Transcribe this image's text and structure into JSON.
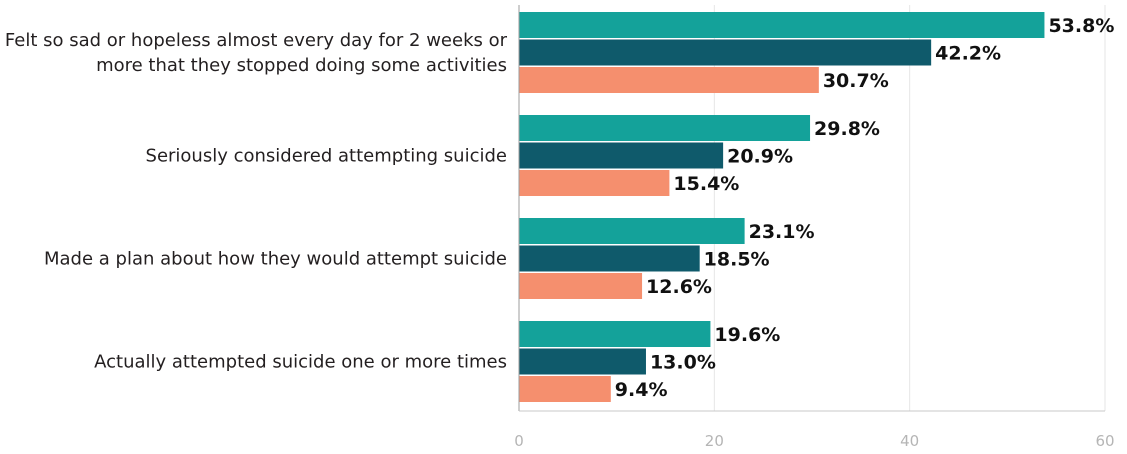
{
  "chart_data": {
    "type": "bar",
    "orientation": "horizontal",
    "categories": [
      [
        "Felt so sad or hopeless almost every day for 2 weeks or",
        "more that they stopped doing some activities"
      ],
      [
        "Seriously considered attempting suicide"
      ],
      [
        "Made a plan about how they would attempt suicide"
      ],
      [
        "Actually attempted suicide one or more times"
      ]
    ],
    "series": [
      {
        "color": "#14a29a",
        "values": [
          53.8,
          29.8,
          23.1,
          19.6
        ],
        "labels": [
          "53.8%",
          "29.8%",
          "23.1%",
          "19.6%"
        ]
      },
      {
        "color": "#0f5a6b",
        "values": [
          42.2,
          20.9,
          18.5,
          13.0
        ],
        "labels": [
          "42.2%",
          "20.9%",
          "18.5%",
          "13.0%"
        ]
      },
      {
        "color": "#f58f6e",
        "values": [
          30.7,
          15.4,
          12.6,
          9.4
        ],
        "labels": [
          "30.7%",
          "15.4%",
          "12.6%",
          "9.4%"
        ]
      }
    ],
    "xlim": [
      0,
      60
    ],
    "xticks": [
      "0",
      "20",
      "40",
      "60"
    ],
    "grid": true,
    "title": "",
    "xlabel": "",
    "ylabel": ""
  }
}
